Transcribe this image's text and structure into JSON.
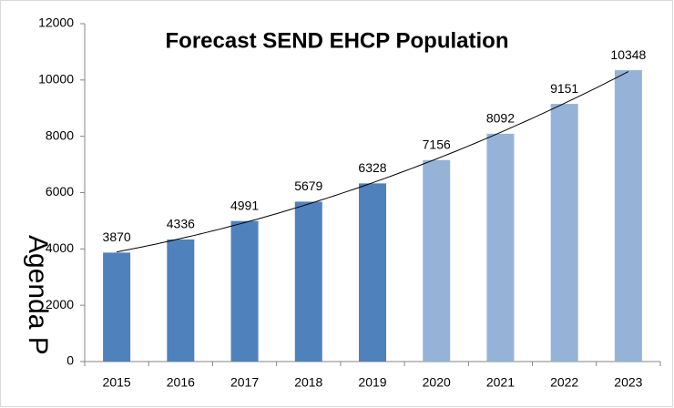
{
  "chart_data": {
    "type": "bar",
    "title": "Forecast SEND EHCP Population",
    "categories": [
      "2015",
      "2016",
      "2017",
      "2018",
      "2019",
      "2020",
      "2021",
      "2022",
      "2023"
    ],
    "values": [
      3870,
      4336,
      4991,
      5679,
      6328,
      7156,
      8092,
      9151,
      10348
    ],
    "colors": [
      "#4f81bd",
      "#4f81bd",
      "#4f81bd",
      "#4f81bd",
      "#4f81bd",
      "#95b3d7",
      "#95b3d7",
      "#95b3d7",
      "#95b3d7"
    ],
    "ylim": [
      0,
      12000
    ],
    "yticks": [
      0,
      2000,
      4000,
      6000,
      8000,
      10000,
      12000
    ],
    "trendline": "polynomial",
    "annotations": [
      "Agenda P"
    ]
  }
}
